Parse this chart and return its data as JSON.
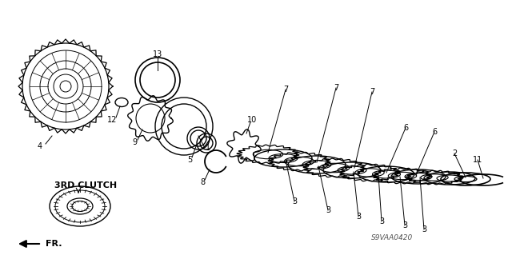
{
  "title": "",
  "background_color": "#ffffff",
  "diagram_code": "S9VAA0420",
  "label_3rd_clutch": "3RD CLUTCH",
  "label_fr": "FR.",
  "arrow_color": "#000000",
  "line_color": "#000000",
  "text_color": "#000000",
  "fig_width": 6.4,
  "fig_height": 3.19,
  "dpi": 100
}
